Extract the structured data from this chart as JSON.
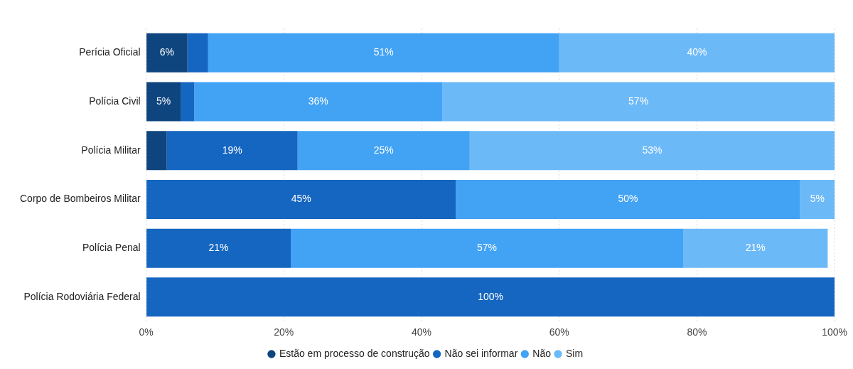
{
  "chart_data": {
    "type": "bar",
    "orientation": "horizontal",
    "stacked": true,
    "categories": [
      "Perícia Oficial",
      "Polícia Civil",
      "Polícia Militar",
      "Corpo de Bombeiros Militar",
      "Polícia Penal",
      "Polícia Rodoviária Federal"
    ],
    "series": [
      {
        "name": "Estão em processo de construção",
        "color": "#0e457e",
        "values": [
          6,
          5,
          3,
          0,
          0,
          0
        ],
        "value_labels": [
          "6%",
          "5%",
          null,
          null,
          null,
          null
        ]
      },
      {
        "name": "Não sei informar",
        "color": "#1566c0",
        "values": [
          3,
          2,
          19,
          45,
          21,
          100
        ],
        "value_labels": [
          null,
          null,
          "19%",
          "45%",
          "21%",
          "100%"
        ]
      },
      {
        "name": "Não",
        "color": "#42a2f4",
        "values": [
          51,
          36,
          25,
          50,
          57,
          0
        ],
        "value_labels": [
          "51%",
          "36%",
          "25%",
          "50%",
          "57%",
          null
        ]
      },
      {
        "name": "Sim",
        "color": "#6cb9f8",
        "values": [
          40,
          57,
          53,
          5,
          21,
          0
        ],
        "value_labels": [
          "40%",
          "57%",
          "53%",
          "5%",
          "21%",
          null
        ]
      }
    ],
    "xlim": [
      0,
      100
    ],
    "xticks": [
      {
        "value": 0,
        "label": "0%"
      },
      {
        "value": 20,
        "label": "20%"
      },
      {
        "value": 40,
        "label": "40%"
      },
      {
        "value": 60,
        "label": "60%"
      },
      {
        "value": 80,
        "label": "80%"
      },
      {
        "value": 100,
        "label": "100%"
      }
    ],
    "grid": "x",
    "legend": "bottom"
  }
}
